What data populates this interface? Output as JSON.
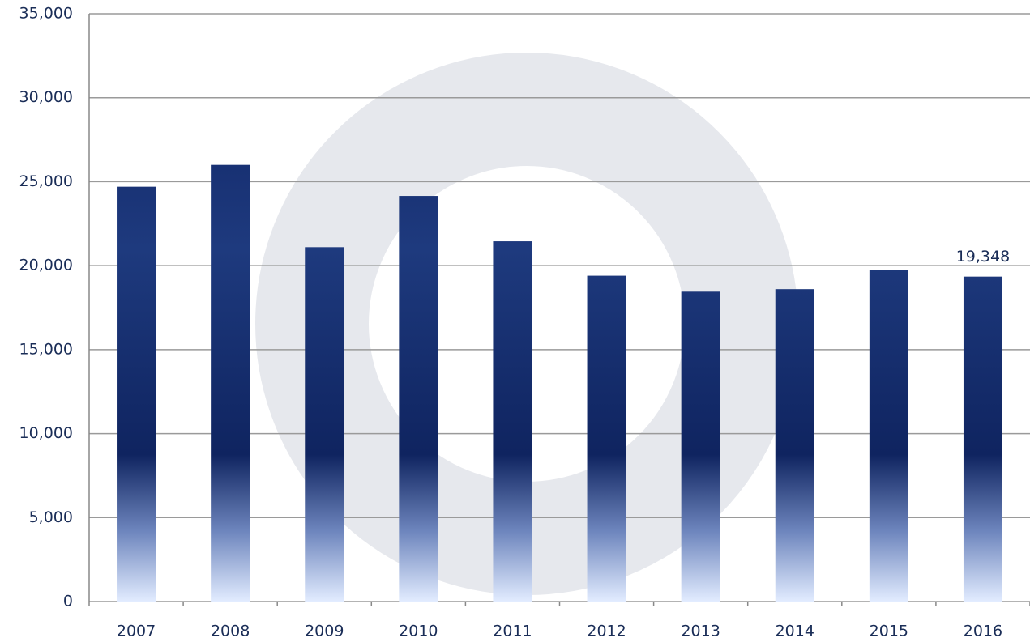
{
  "chart_data": {
    "type": "bar",
    "categories": [
      "2007",
      "2008",
      "2009",
      "2010",
      "2011",
      "2012",
      "2013",
      "2014",
      "2015",
      "2016"
    ],
    "values": [
      24700,
      26000,
      21100,
      24150,
      21450,
      19400,
      18450,
      18600,
      19750,
      19348
    ],
    "value_labels": [
      null,
      null,
      null,
      null,
      null,
      null,
      null,
      null,
      null,
      "19,348"
    ],
    "color": "#0d2060",
    "ylim": [
      0,
      35000
    ],
    "yticks": [
      0,
      {
        "value": 5000,
        "label": "5,000"
      },
      {
        "value": 10000,
        "label": "10,000"
      },
      {
        "value": 15000,
        "label": "15,000"
      },
      {
        "value": 20000,
        "label": "20,000"
      },
      {
        "value": 25000,
        "label": "25,000"
      },
      {
        "value": 30000,
        "label": "30,000"
      },
      {
        "value": 35000,
        "label": "35,000"
      }
    ],
    "grid": true
  }
}
